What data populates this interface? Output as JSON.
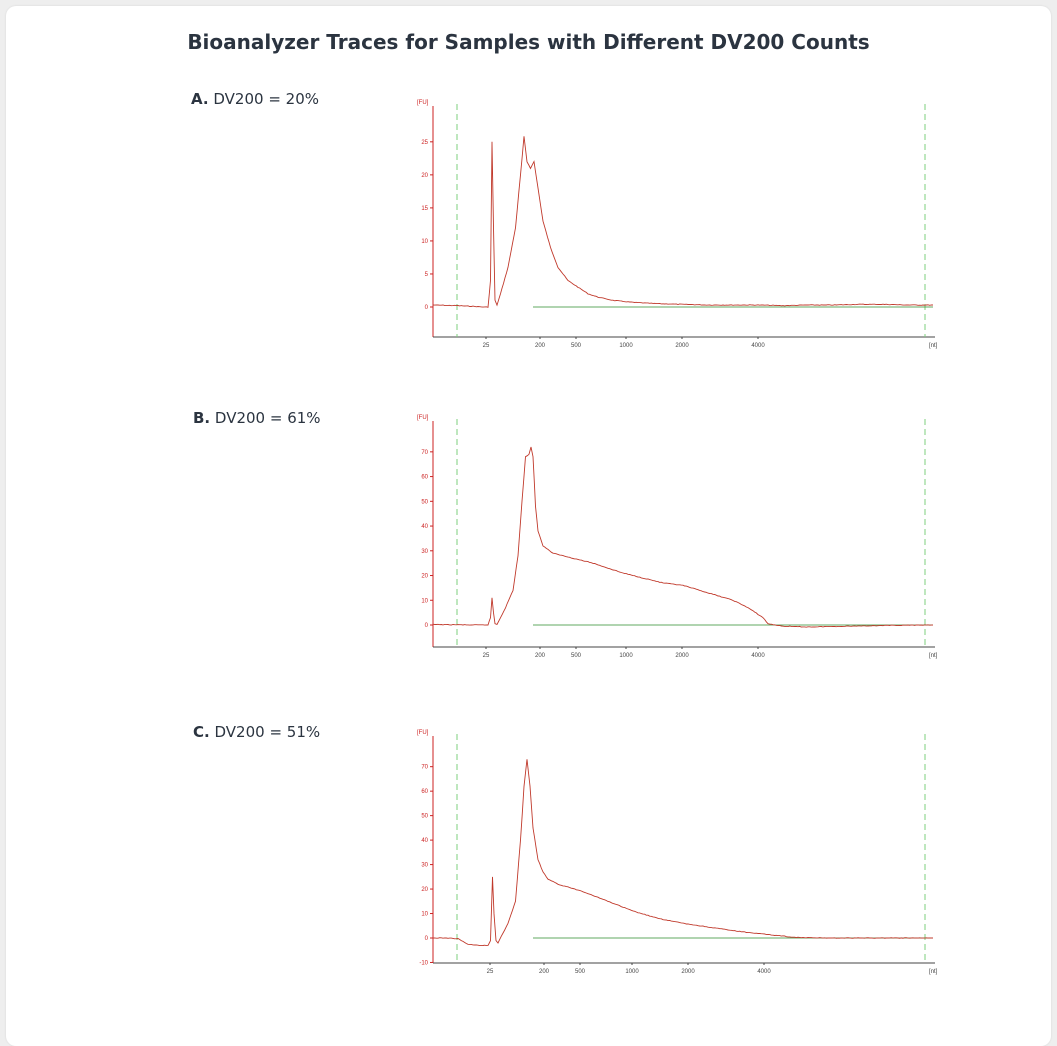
{
  "header": {
    "title": "Bioanalyzer Traces for Samples with Different DV200 Counts"
  },
  "colors": {
    "trace": "#c0392b",
    "axis_red": "#cc2222",
    "axis_black": "#444444",
    "marker_green": "#7ccf7c",
    "baseline_green": "#2e8b2e"
  },
  "chart_data": [
    {
      "type": "line",
      "panel_letter": "A.",
      "panel_text": "DV200 = 20%",
      "ylabel": "[FU]",
      "xlabel": "[nt]",
      "x_tick_labels": [
        "25",
        "200",
        "500",
        "1000",
        "2000",
        "4000"
      ],
      "y_ticks": [
        0,
        5,
        10,
        15,
        20,
        25
      ],
      "ylim": [
        -1,
        28
      ],
      "grid": false,
      "series": [
        {
          "values": [
            [
              0,
              0.3
            ],
            [
              5,
              0.2
            ],
            [
              8,
              0.1
            ],
            [
              10,
              0.0
            ],
            [
              11,
              0.0
            ],
            [
              11.5,
              4
            ],
            [
              11.8,
              25
            ],
            [
              12.1,
              12
            ],
            [
              12.4,
              1
            ],
            [
              12.8,
              0.3
            ],
            [
              13.5,
              2
            ],
            [
              15,
              6
            ],
            [
              16.5,
              12
            ],
            [
              17.5,
              20
            ],
            [
              18.2,
              25.8
            ],
            [
              18.8,
              22
            ],
            [
              19.5,
              21
            ],
            [
              20.2,
              22
            ],
            [
              21,
              18
            ],
            [
              22,
              13
            ],
            [
              23.5,
              9
            ],
            [
              25,
              6
            ],
            [
              27,
              4
            ],
            [
              29,
              3
            ],
            [
              31,
              2
            ],
            [
              33,
              1.5
            ],
            [
              36,
              1.0
            ],
            [
              40,
              0.7
            ],
            [
              45,
              0.5
            ],
            [
              50,
              0.4
            ],
            [
              55,
              0.3
            ],
            [
              60,
              0.3
            ],
            [
              65,
              0.3
            ],
            [
              70,
              0.2
            ],
            [
              75,
              0.3
            ],
            [
              80,
              0.3
            ],
            [
              85,
              0.4
            ],
            [
              90,
              0.4
            ],
            [
              95,
              0.3
            ],
            [
              100,
              0.3
            ]
          ]
        },
        {
          "values": [
            [
              0,
              0
            ],
            [
              100,
              0
            ]
          ]
        }
      ]
    },
    {
      "type": "line",
      "panel_letter": "B.",
      "panel_text": "DV200 = 61%",
      "ylabel": "[FU]",
      "xlabel": "[nt]",
      "x_tick_labels": [
        "25",
        "200",
        "500",
        "1000",
        "2000",
        "4000"
      ],
      "y_ticks": [
        0,
        10,
        20,
        30,
        40,
        50,
        60,
        70
      ],
      "ylim": [
        -3,
        76
      ],
      "grid": false,
      "series": [
        {
          "values": [
            [
              0,
              0.2
            ],
            [
              5,
              0.1
            ],
            [
              8,
              0.0
            ],
            [
              10,
              0.0
            ],
            [
              11,
              0.1
            ],
            [
              11.5,
              3
            ],
            [
              11.8,
              11
            ],
            [
              12.1,
              5
            ],
            [
              12.4,
              0.5
            ],
            [
              12.8,
              0.3
            ],
            [
              13.5,
              3
            ],
            [
              14.5,
              7
            ],
            [
              16,
              14
            ],
            [
              17,
              28
            ],
            [
              17.8,
              50
            ],
            [
              18.5,
              68
            ],
            [
              19.2,
              69
            ],
            [
              19.6,
              72
            ],
            [
              20,
              68
            ],
            [
              20.5,
              48
            ],
            [
              21,
              38
            ],
            [
              22,
              32
            ],
            [
              24,
              29
            ],
            [
              26,
              28
            ],
            [
              28,
              27
            ],
            [
              30,
              26
            ],
            [
              32,
              25
            ],
            [
              35,
              23
            ],
            [
              38,
              21
            ],
            [
              42,
              19
            ],
            [
              46,
              17
            ],
            [
              50,
              16
            ],
            [
              55,
              13
            ],
            [
              60,
              10
            ],
            [
              63,
              7
            ],
            [
              66,
              3
            ],
            [
              67,
              0.5
            ],
            [
              70,
              -0.5
            ],
            [
              75,
              -0.8
            ],
            [
              80,
              -0.6
            ],
            [
              85,
              -0.4
            ],
            [
              90,
              -0.2
            ],
            [
              95,
              -0.1
            ],
            [
              100,
              0.0
            ]
          ]
        },
        {
          "values": [
            [
              0,
              0
            ],
            [
              100,
              0
            ]
          ]
        }
      ]
    },
    {
      "type": "line",
      "panel_letter": "C.",
      "panel_text": "DV200 = 51%",
      "ylabel": "[FU]",
      "xlabel": "[nt]",
      "x_tick_labels": [
        "25",
        "200",
        "500",
        "1000",
        "2000",
        "4000"
      ],
      "y_ticks": [
        -10,
        0,
        10,
        20,
        30,
        40,
        50,
        60,
        70
      ],
      "ylim": [
        -12,
        76
      ],
      "grid": false,
      "series": [
        {
          "values": [
            [
              0,
              0.0
            ],
            [
              3,
              0.0
            ],
            [
              5,
              -0.3
            ],
            [
              6,
              -1.5
            ],
            [
              7,
              -2.5
            ],
            [
              9,
              -3
            ],
            [
              11,
              -3
            ],
            [
              11.5,
              -1
            ],
            [
              11.9,
              25
            ],
            [
              12.2,
              10
            ],
            [
              12.6,
              -1
            ],
            [
              13,
              -2
            ],
            [
              14,
              2
            ],
            [
              15,
              6
            ],
            [
              16.5,
              15
            ],
            [
              17.5,
              40
            ],
            [
              18.2,
              62
            ],
            [
              18.8,
              73
            ],
            [
              19.4,
              62
            ],
            [
              20,
              45
            ],
            [
              21,
              32
            ],
            [
              22,
              27
            ],
            [
              23,
              24
            ],
            [
              25,
              22
            ],
            [
              30,
              19
            ],
            [
              35,
              15
            ],
            [
              40,
              11
            ],
            [
              45,
              8
            ],
            [
              50,
              6
            ],
            [
              55,
              4.5
            ],
            [
              60,
              3
            ],
            [
              65,
              1.8
            ],
            [
              70,
              0.8
            ],
            [
              72,
              0.3
            ],
            [
              75,
              0.1
            ],
            [
              80,
              0.0
            ],
            [
              85,
              0.0
            ],
            [
              90,
              0.0
            ],
            [
              95,
              0.0
            ],
            [
              100,
              0.0
            ]
          ]
        },
        {
          "values": [
            [
              0,
              0
            ],
            [
              100,
              0
            ]
          ]
        }
      ]
    }
  ]
}
